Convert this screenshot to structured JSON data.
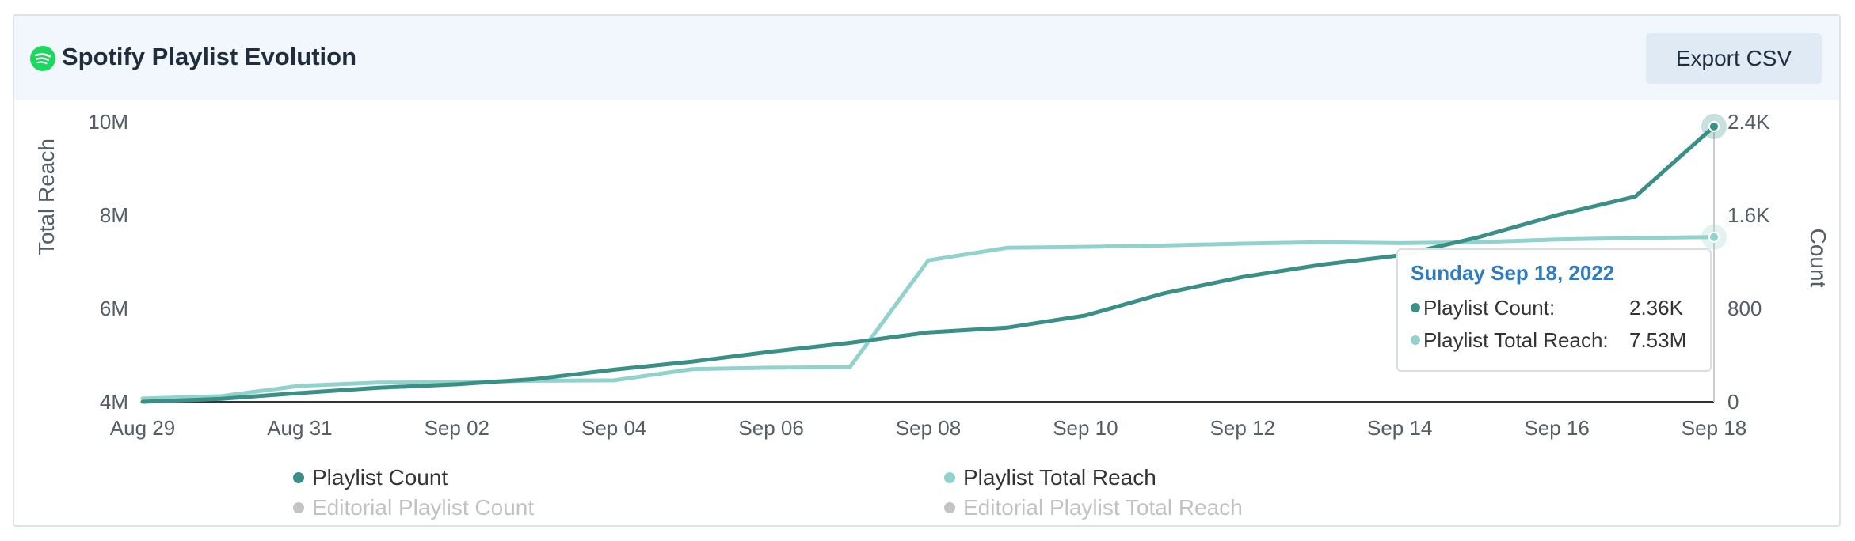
{
  "header": {
    "title": "Spotify Playlist Evolution",
    "export_label": "Export CSV"
  },
  "colors": {
    "playlist_count": "#3a8f87",
    "playlist_total_reach": "#92d2cc",
    "inactive": "#c4c4c4",
    "brand_green": "#1ed760"
  },
  "chart_data": {
    "type": "line",
    "x_tick_labels": [
      "Aug 29",
      "Aug 31",
      "Sep 02",
      "Sep 04",
      "Sep 06",
      "Sep 08",
      "Sep 10",
      "Sep 12",
      "Sep 14",
      "Sep 16",
      "Sep 18"
    ],
    "x": [
      "2022-08-29",
      "2022-08-30",
      "2022-08-31",
      "2022-09-01",
      "2022-09-02",
      "2022-09-03",
      "2022-09-04",
      "2022-09-05",
      "2022-09-06",
      "2022-09-07",
      "2022-09-08",
      "2022-09-09",
      "2022-09-10",
      "2022-09-11",
      "2022-09-12",
      "2022-09-13",
      "2022-09-14",
      "2022-09-15",
      "2022-09-16",
      "2022-09-17",
      "2022-09-18"
    ],
    "y_left": {
      "label": "Total Reach",
      "ticks": [
        "4M",
        "6M",
        "8M",
        "10M"
      ],
      "min": 4000000,
      "max": 10000000
    },
    "y_right": {
      "label": "Count",
      "ticks": [
        "0",
        "800",
        "1.6K",
        "2.4K"
      ],
      "min": 0,
      "max": 2400
    },
    "series": [
      {
        "name": "Playlist Count",
        "axis": "right",
        "values": [
          0,
          25,
          75,
          120,
          150,
          195,
          275,
          345,
          430,
          505,
          595,
          635,
          740,
          930,
          1070,
          1175,
          1255,
          1410,
          1600,
          1760,
          2360
        ]
      },
      {
        "name": "Playlist Total Reach",
        "axis": "left",
        "values": [
          4070000,
          4120000,
          4340000,
          4410000,
          4420000,
          4450000,
          4460000,
          4700000,
          4730000,
          4740000,
          7030000,
          7300000,
          7320000,
          7350000,
          7390000,
          7420000,
          7400000,
          7420000,
          7480000,
          7510000,
          7530000
        ]
      }
    ],
    "legend": [
      {
        "name": "Playlist Count",
        "active": true
      },
      {
        "name": "Playlist Total Reach",
        "active": true
      },
      {
        "name": "Editorial Playlist Count",
        "active": false
      },
      {
        "name": "Editorial Playlist Total Reach",
        "active": false
      }
    ],
    "legend_placement": "bottom",
    "grid": false,
    "tooltip": {
      "date": "Sunday Sep 18, 2022",
      "rows": [
        {
          "label": "Playlist Count:",
          "value": "2.36K"
        },
        {
          "label": "Playlist Total Reach:",
          "value": "7.53M"
        }
      ]
    }
  }
}
